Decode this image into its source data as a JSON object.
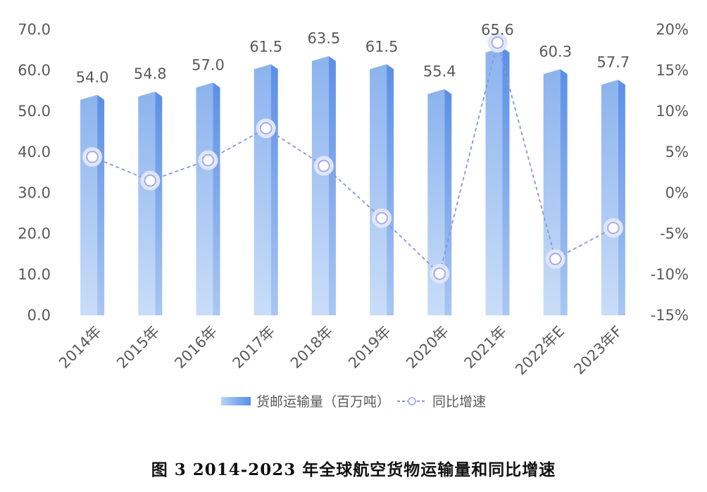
{
  "chart_data": {
    "type": "bar",
    "categories": [
      "2014年",
      "2015年",
      "2016年",
      "2017年",
      "2018年",
      "2019年",
      "2020年",
      "2021年",
      "2022年E",
      "2023年F"
    ],
    "series": [
      {
        "name": "货邮运输量（百万吨）",
        "type": "bar",
        "axis": "left",
        "values": [
          54.0,
          54.8,
          57.0,
          61.5,
          63.5,
          61.5,
          55.4,
          65.6,
          60.3,
          57.7
        ],
        "labels": [
          "54.0",
          "54.8",
          "57.0",
          "61.5",
          "63.5",
          "61.5",
          "55.4",
          "65.6",
          "60.3",
          "57.7"
        ]
      },
      {
        "name": "同比增速",
        "type": "line",
        "axis": "right",
        "values": [
          4.4,
          1.5,
          4.0,
          7.9,
          3.3,
          -3.1,
          -9.9,
          18.4,
          -8.1,
          -4.3
        ]
      }
    ],
    "left_axis": {
      "ylim": [
        0,
        70
      ],
      "ticks": [
        "0.0",
        "10.0",
        "20.0",
        "30.0",
        "40.0",
        "50.0",
        "60.0",
        "70.0"
      ]
    },
    "right_axis": {
      "ylim": [
        -15,
        20
      ],
      "ticks": [
        "-15%",
        "-10%",
        "-5%",
        "0%",
        "5%",
        "10%",
        "15%",
        "20%"
      ]
    },
    "legend_position": "bottom",
    "grid": false,
    "colors": {
      "bar_light": "#c5dbf7",
      "bar_mid": "#8fb7ee",
      "bar_dark": "#5d92e6",
      "line": "#8c95dc",
      "marker_stroke": "#aab4ee",
      "text": "#595959"
    }
  },
  "caption": "图 3 2014-2023 年全球航空货物运输量和同比增速"
}
